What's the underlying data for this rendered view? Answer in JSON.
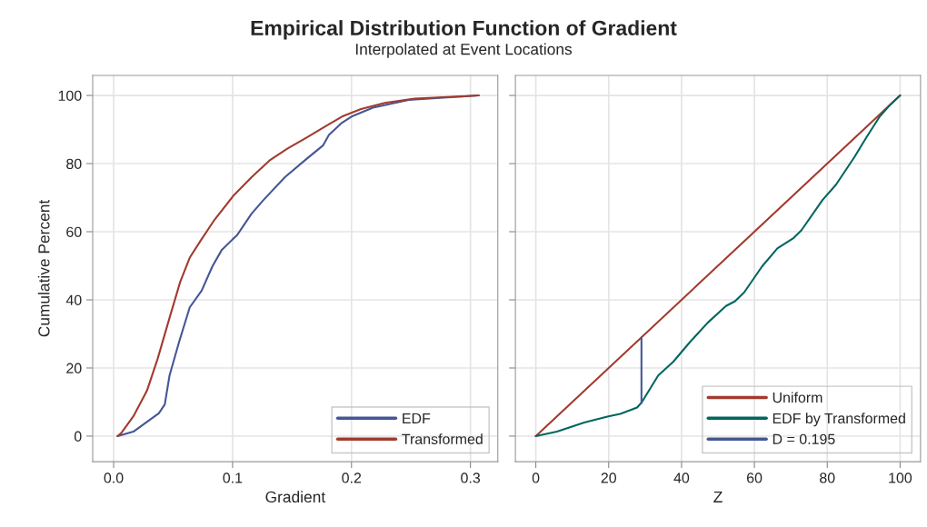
{
  "chart_data": [
    {
      "type": "line",
      "title": "Empirical Distribution Function of Gradient",
      "subtitle": "Interpolated at Event Locations",
      "xlabel": "Gradient",
      "ylabel": "Cumulative Percent",
      "xlim": [
        -0.0176,
        0.323
      ],
      "xticks": [
        {
          "value": 0,
          "label": "0.0"
        },
        0.1,
        0.2,
        0.3
      ],
      "ylim": [
        -7.5,
        105.9
      ],
      "yticks": [
        0,
        20,
        40,
        60,
        80,
        100
      ],
      "grid": true,
      "legend": "bottom right",
      "series": [
        {
          "name": "EDF",
          "color": "#445694",
          "x": [
            0.0033,
            0.0166,
            0.029,
            0.038,
            0.043,
            0.047,
            0.055,
            0.064,
            0.074,
            0.083,
            0.091,
            0.104,
            0.116,
            0.126,
            0.144,
            0.162,
            0.176,
            0.181,
            0.192,
            0.2,
            0.218,
            0.248,
            0.289,
            0.307
          ],
          "values": [
            0,
            1.3,
            4.4,
            6.7,
            9.3,
            17.8,
            27.6,
            37.8,
            42.7,
            49.8,
            54.7,
            59.1,
            65.3,
            69.3,
            76,
            81.3,
            85.3,
            88.4,
            92,
            93.8,
            96.4,
            98.7,
            99.6,
            100
          ]
        },
        {
          "name": "Transformed",
          "color": "#a23a2e",
          "x": [
            0.0033,
            0.0064,
            0.0166,
            0.028,
            0.037,
            0.047,
            0.056,
            0.064,
            0.073,
            0.085,
            0.101,
            0.116,
            0.131,
            0.146,
            0.162,
            0.177,
            0.192,
            0.208,
            0.228,
            0.253,
            0.289,
            0.307
          ],
          "values": [
            0,
            0.9,
            5.8,
            13.3,
            22.7,
            34.7,
            45.3,
            52.4,
            57.3,
            63.6,
            70.7,
            76,
            80.9,
            84.4,
            87.6,
            90.7,
            93.8,
            96,
            97.8,
            99.1,
            99.7,
            100
          ]
        }
      ]
    },
    {
      "type": "line",
      "xlabel": "Z",
      "xlim": [
        -5.6,
        105.6
      ],
      "xticks": [
        0,
        20,
        40,
        60,
        80,
        100
      ],
      "ylim": [
        -7.5,
        105.9
      ],
      "yticks": [
        0,
        20,
        40,
        60,
        80,
        100
      ],
      "tick_labels": "x",
      "grid": true,
      "legend": "bottom right",
      "series": [
        {
          "name": "Uniform",
          "color": "#a23a2e",
          "x": [
            0,
            100
          ],
          "values": [
            0,
            100
          ]
        },
        {
          "name": "EDF by Transformed",
          "color": "#01665e",
          "x": [
            0,
            5.8,
            13.3,
            19.9,
            23.2,
            27.8,
            29,
            33.6,
            37.7,
            42.3,
            47.2,
            52.2,
            54.7,
            57.2,
            62.1,
            66.3,
            70.8,
            72.9,
            78.7,
            82.4,
            87.4,
            90.7,
            94.4,
            97.3,
            100
          ],
          "values": [
            0,
            1.3,
            4,
            5.8,
            6.5,
            8.4,
            9.8,
            17.8,
            21.8,
            27.6,
            33.3,
            38.2,
            39.6,
            42.2,
            49.8,
            55.1,
            58.2,
            60.4,
            69.3,
            73.8,
            81.8,
            87.6,
            93.8,
            97.3,
            100
          ]
        },
        {
          "name": "D = 0.195",
          "color": "#445694",
          "x": [
            29,
            29
          ],
          "values": [
            9.8,
            28.9
          ]
        }
      ]
    }
  ]
}
